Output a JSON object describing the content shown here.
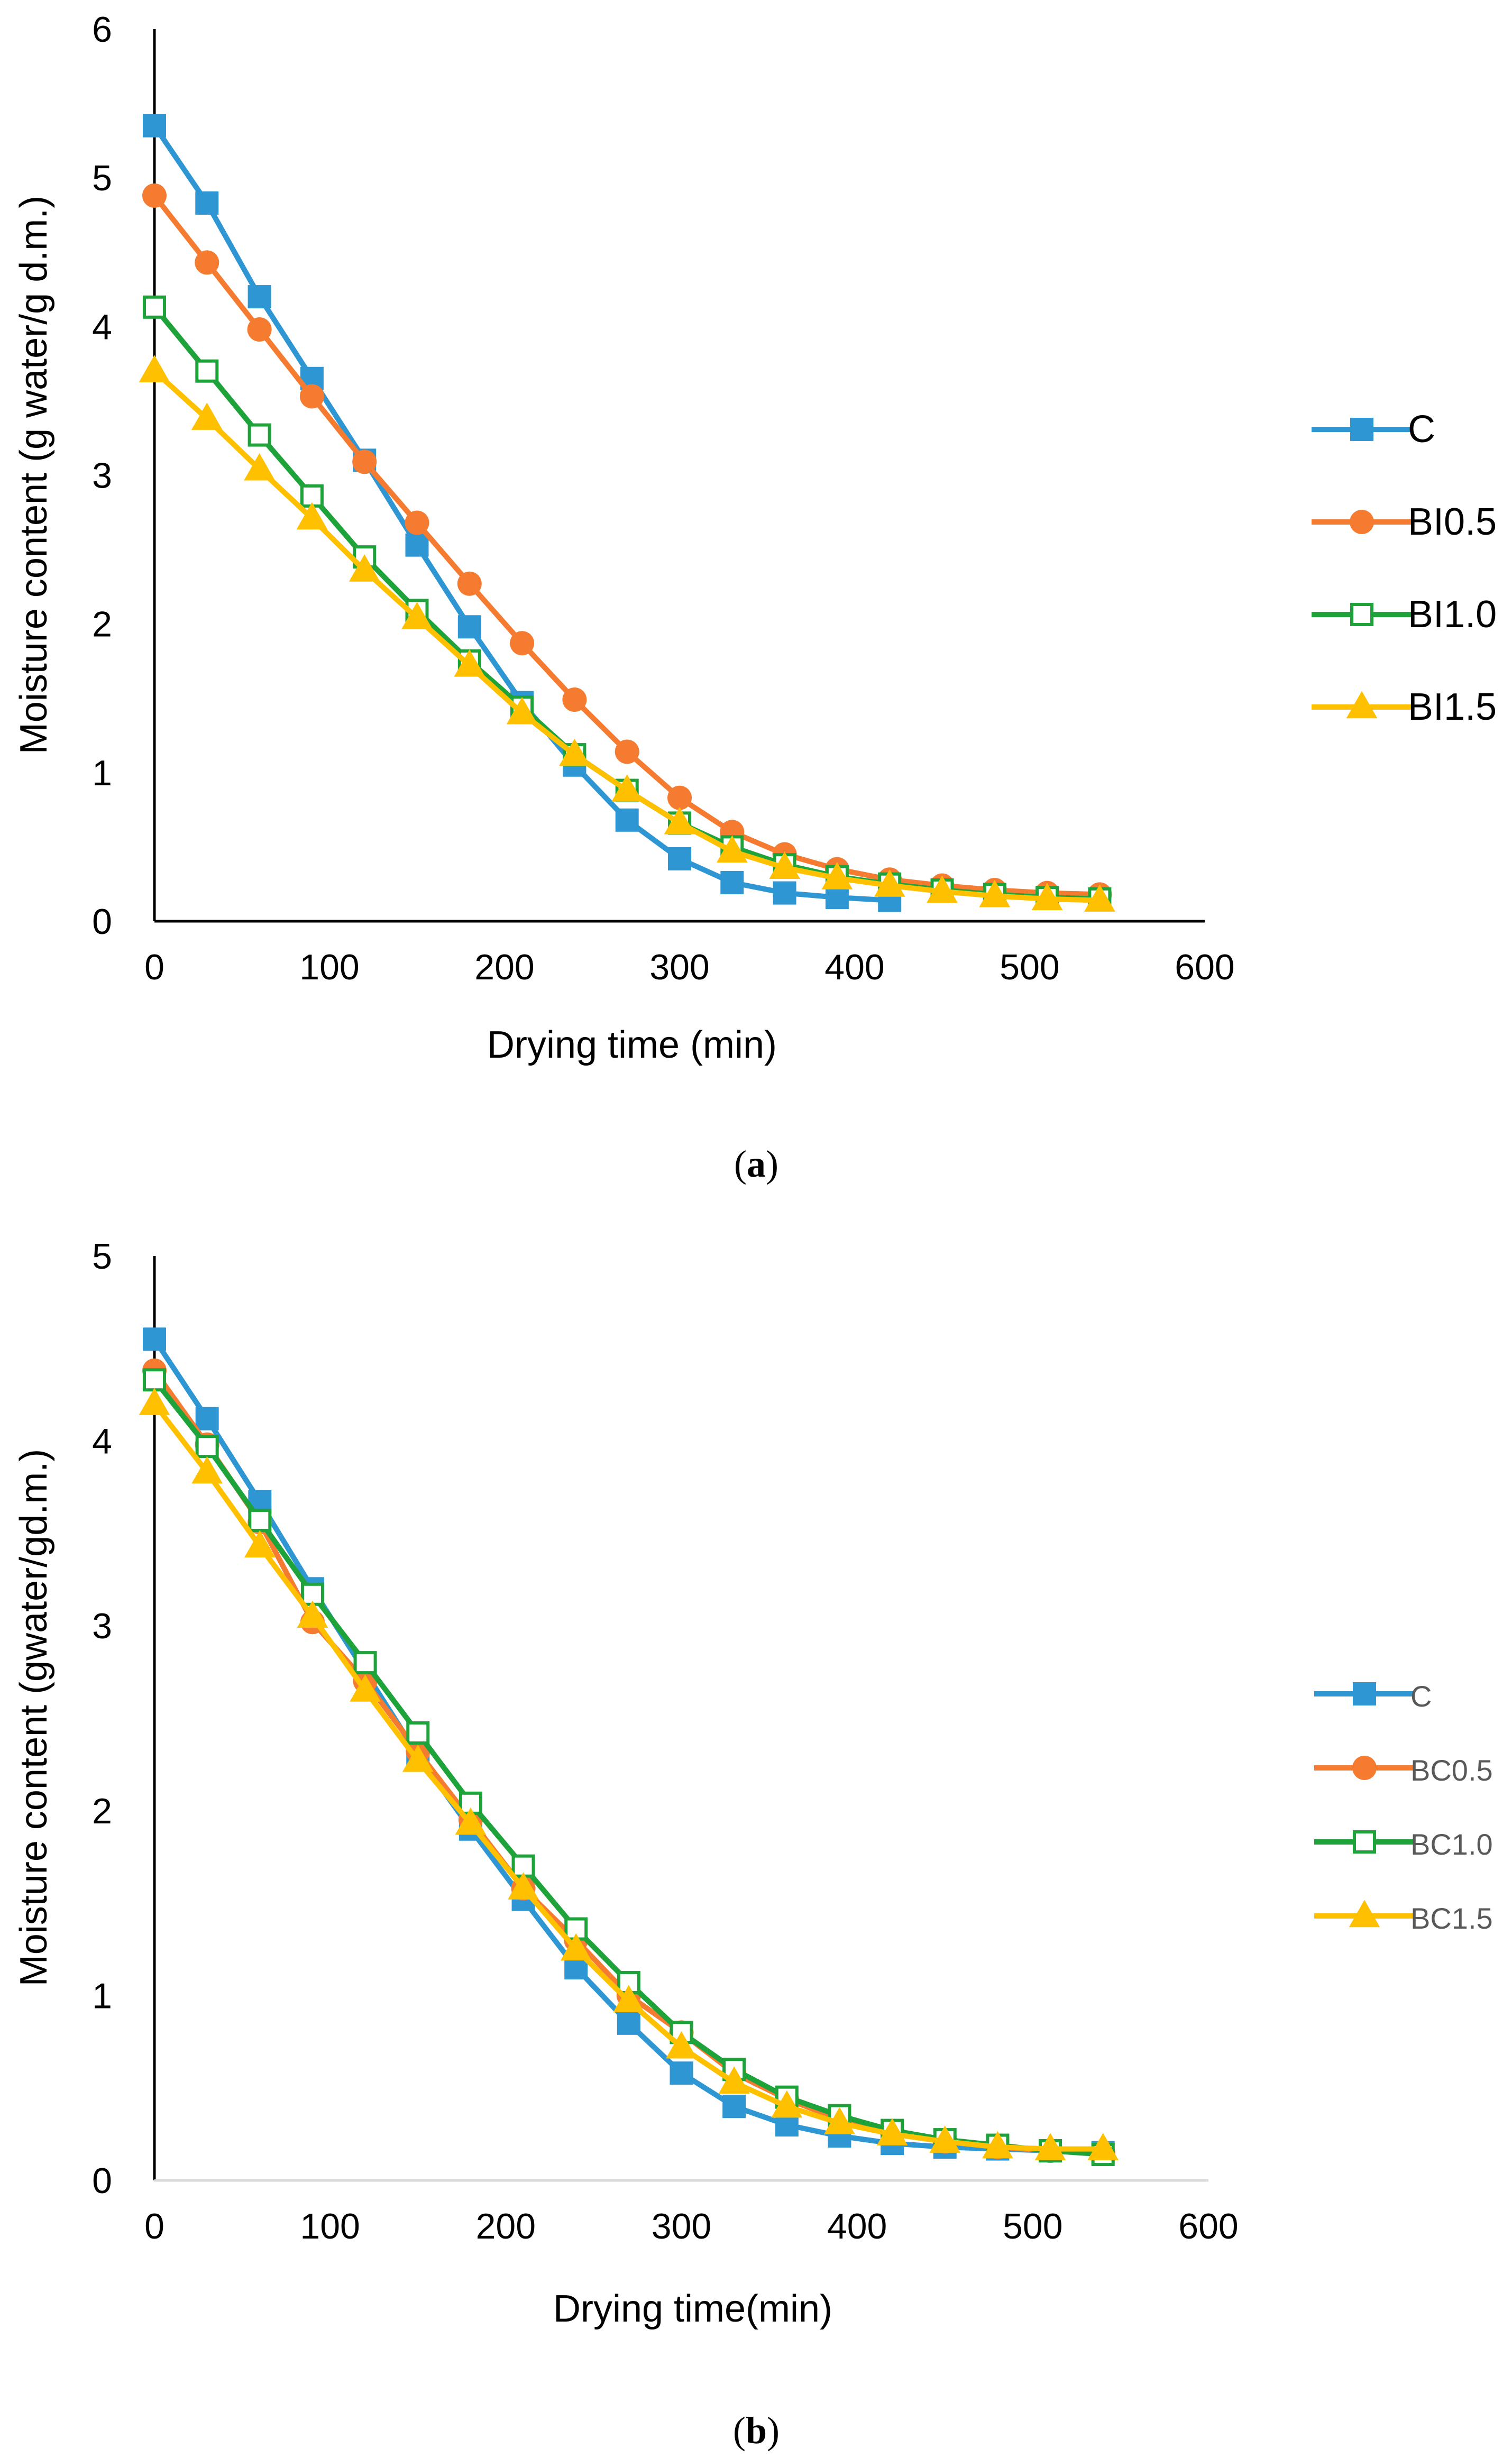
{
  "chart_data": [
    {
      "type": "line",
      "caption": "a",
      "xlabel": "Drying time (min)",
      "ylabel": "Moisture content (g water/g d.m.)",
      "xlim": [
        0,
        600
      ],
      "ylim": [
        0,
        6
      ],
      "xticks": [
        "0",
        "100",
        "200",
        "300",
        "400",
        "500",
        "600"
      ],
      "yticks": [
        "0",
        "1",
        "2",
        "3",
        "4",
        "5",
        "6"
      ],
      "grid": false,
      "legend": "right",
      "x": [
        0,
        30,
        60,
        90,
        120,
        150,
        180,
        210,
        240,
        270,
        300,
        330,
        360,
        390,
        420,
        450,
        480,
        510,
        540
      ],
      "series": [
        {
          "name": "C",
          "color": "#2F96D4",
          "marker": "square",
          "values": [
            5.35,
            4.83,
            4.2,
            3.65,
            3.1,
            2.53,
            1.98,
            1.47,
            1.05,
            0.68,
            0.42,
            0.26,
            0.19,
            0.16,
            0.14,
            null,
            null,
            null,
            null
          ]
        },
        {
          "name": "BI0.5",
          "color": "#F47B2F",
          "marker": "circle",
          "values": [
            4.88,
            4.43,
            3.98,
            3.53,
            3.09,
            2.68,
            2.27,
            1.87,
            1.49,
            1.14,
            0.83,
            0.6,
            0.45,
            0.35,
            0.28,
            0.24,
            0.21,
            0.19,
            0.18
          ]
        },
        {
          "name": "BI1.0",
          "color": "#1EA33A",
          "marker": "square-open",
          "values": [
            4.13,
            3.7,
            3.27,
            2.86,
            2.45,
            2.09,
            1.75,
            1.44,
            1.12,
            0.88,
            0.66,
            0.5,
            0.38,
            0.3,
            0.25,
            0.21,
            0.18,
            0.16,
            0.15
          ]
        },
        {
          "name": "BI1.5",
          "color": "#FFC000",
          "marker": "triangle",
          "values": [
            3.7,
            3.38,
            3.04,
            2.71,
            2.36,
            2.04,
            1.72,
            1.4,
            1.12,
            0.88,
            0.66,
            0.47,
            0.36,
            0.29,
            0.24,
            0.2,
            0.17,
            0.15,
            0.14
          ]
        }
      ]
    },
    {
      "type": "line",
      "caption": "b",
      "xlabel": "Drying time(min)",
      "ylabel": "Moisture content (gwater/gd.m.)",
      "xlim": [
        0,
        600
      ],
      "ylim": [
        0,
        5
      ],
      "xticks": [
        "0",
        "100",
        "200",
        "300",
        "400",
        "500",
        "600"
      ],
      "yticks": [
        "0",
        "1",
        "2",
        "3",
        "4",
        "5"
      ],
      "grid": false,
      "legend": "right",
      "x": [
        0,
        30,
        60,
        90,
        120,
        150,
        180,
        210,
        240,
        270,
        300,
        330,
        360,
        390,
        420,
        450,
        480,
        510,
        540
      ],
      "series": [
        {
          "name": "C",
          "color": "#2F96D4",
          "marker": "square",
          "values": [
            4.55,
            4.12,
            3.67,
            3.2,
            2.75,
            2.3,
            1.9,
            1.52,
            1.15,
            0.85,
            0.58,
            0.4,
            0.3,
            0.24,
            0.2,
            0.18,
            0.17,
            0.16,
            0.15
          ]
        },
        {
          "name": "BC0.5",
          "color": "#F47B2F",
          "marker": "circle",
          "values": [
            4.38,
            3.98,
            3.56,
            3.02,
            2.7,
            2.32,
            1.95,
            1.58,
            1.3,
            1.0,
            0.8,
            0.58,
            0.44,
            0.33,
            0.26,
            0.21,
            0.18,
            0.16,
            0.15
          ]
        },
        {
          "name": "BC1.0",
          "color": "#1EA33A",
          "marker": "square-open",
          "values": [
            4.33,
            3.97,
            3.57,
            3.17,
            2.8,
            2.42,
            2.04,
            1.7,
            1.36,
            1.07,
            0.8,
            0.6,
            0.45,
            0.35,
            0.27,
            0.22,
            0.19,
            0.16,
            0.14
          ]
        },
        {
          "name": "BC1.5",
          "color": "#FFC000",
          "marker": "triangle",
          "values": [
            4.2,
            3.83,
            3.43,
            3.05,
            2.65,
            2.27,
            1.93,
            1.58,
            1.25,
            0.97,
            0.72,
            0.53,
            0.4,
            0.31,
            0.25,
            0.21,
            0.18,
            0.17,
            0.17
          ]
        }
      ]
    }
  ]
}
